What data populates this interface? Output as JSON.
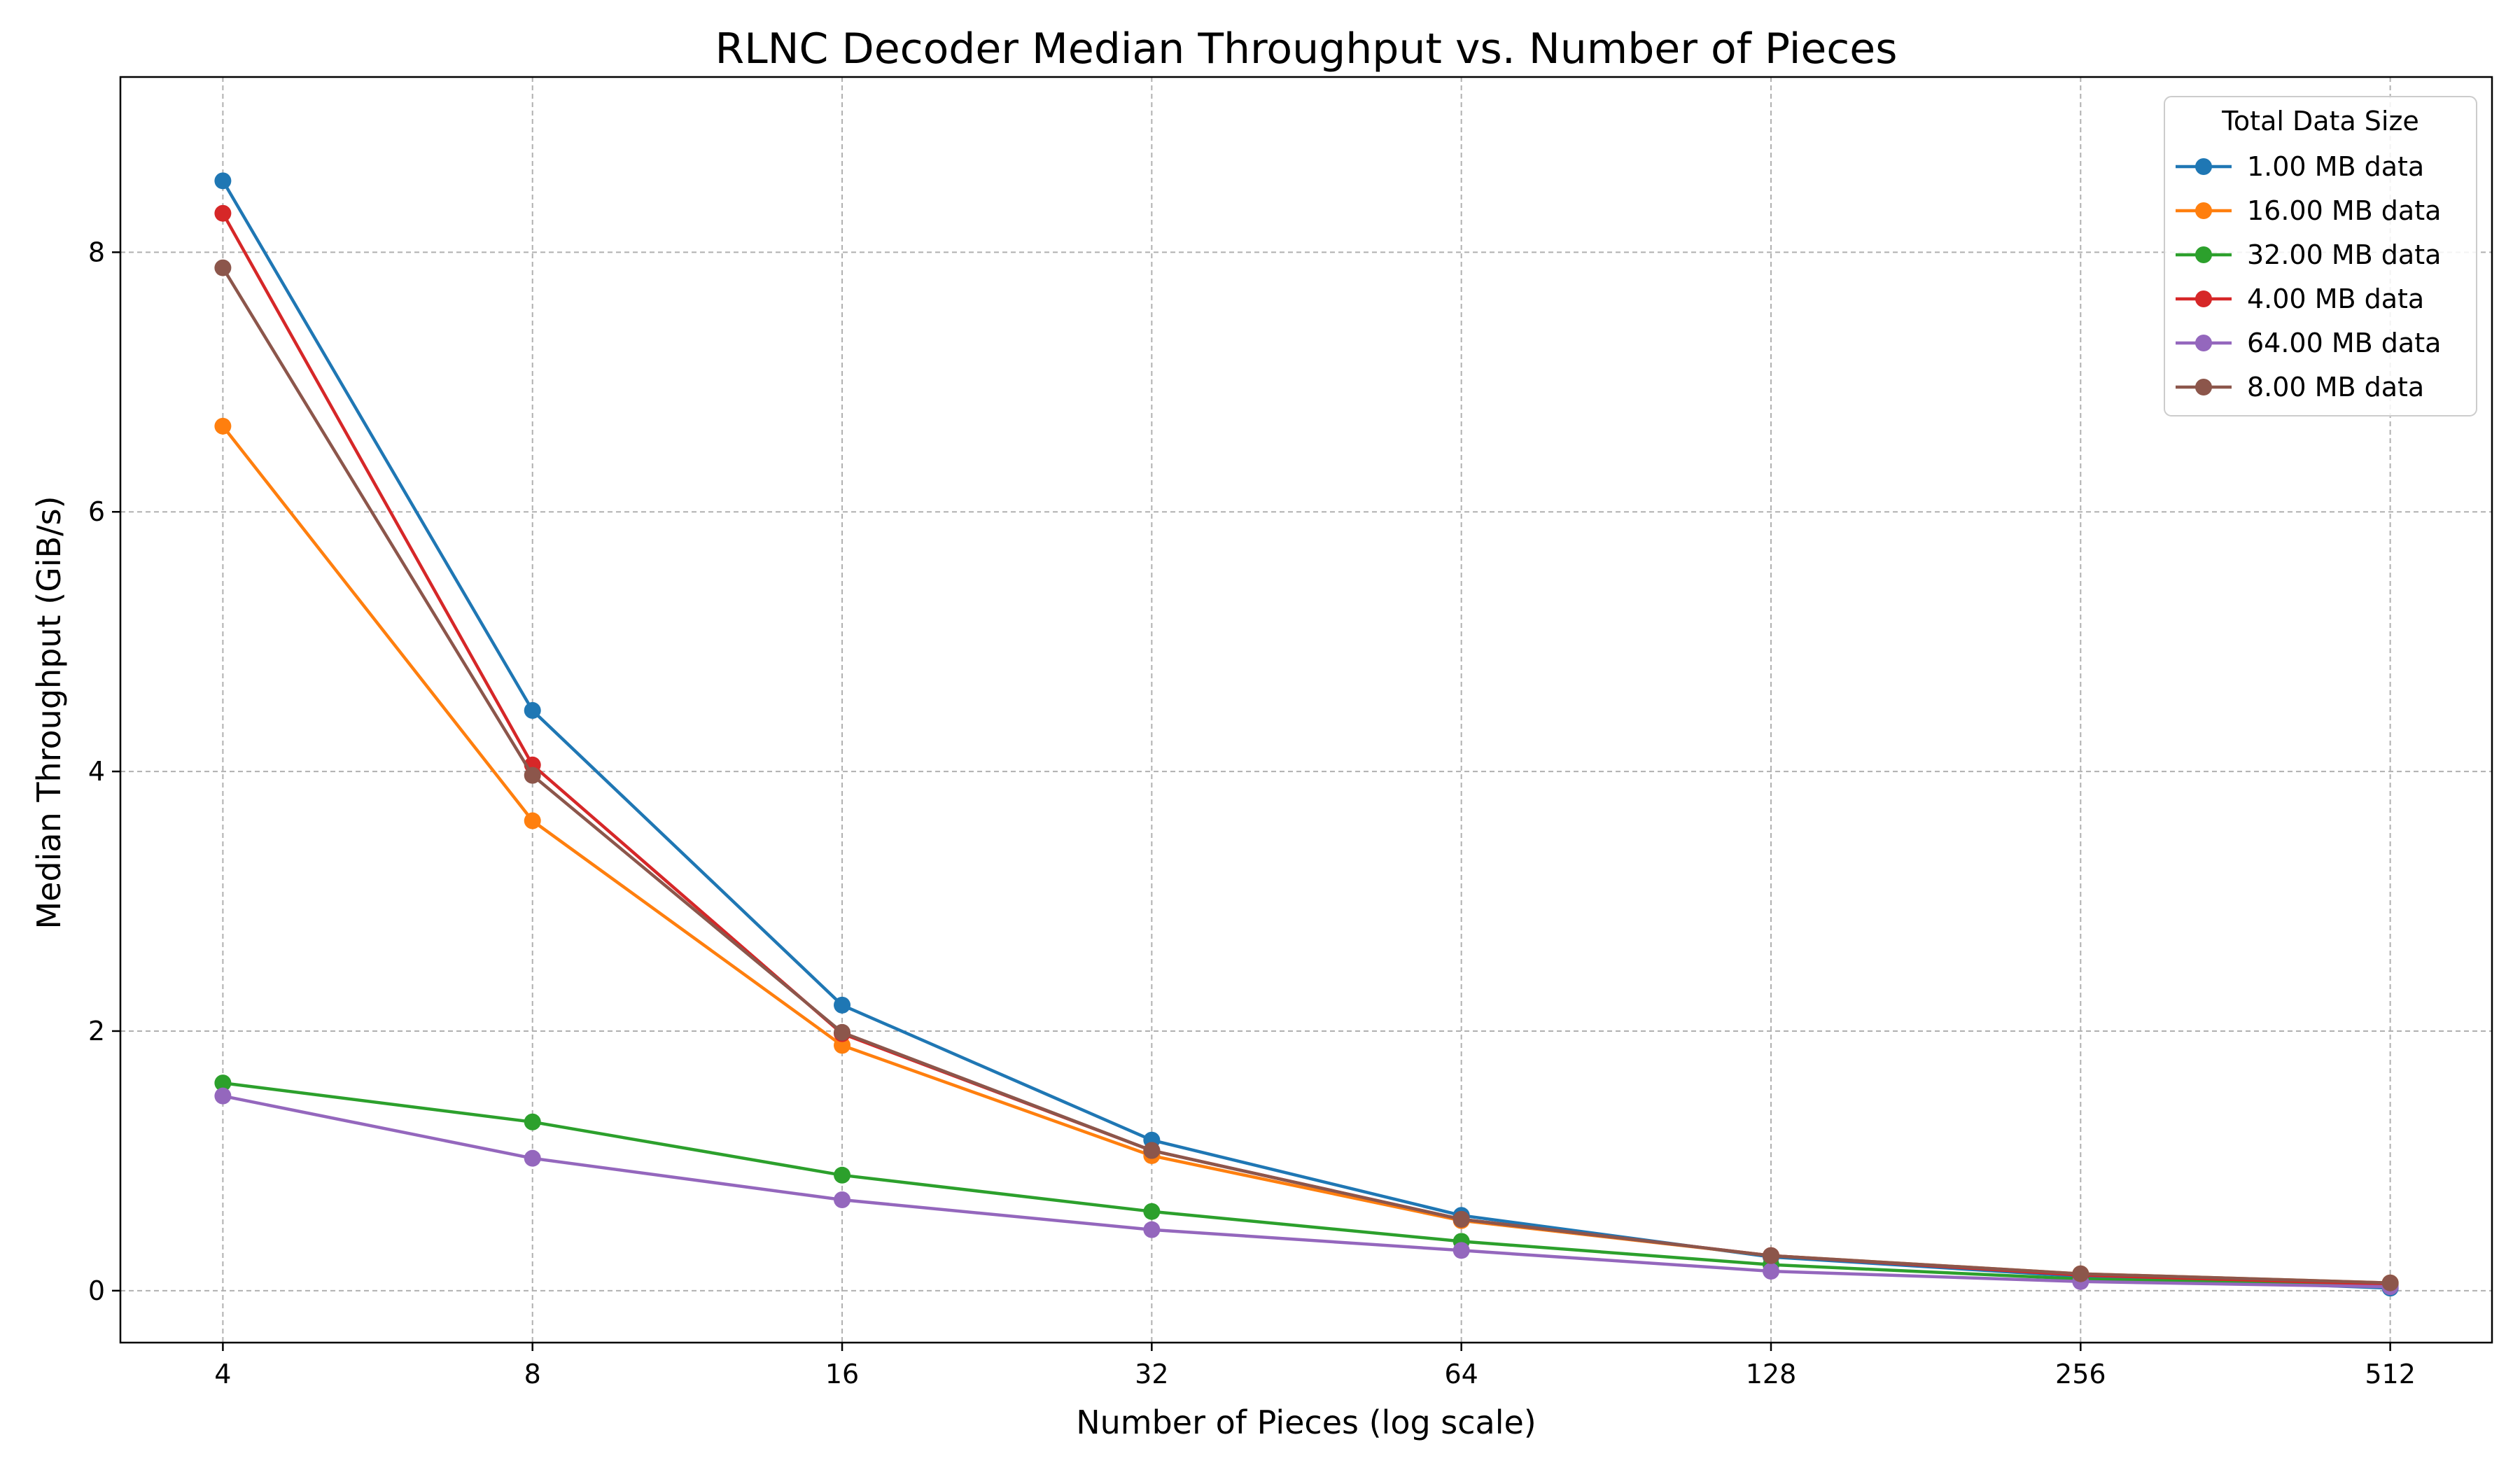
{
  "chart_data": {
    "type": "line",
    "title": "RLNC Decoder Median Throughput vs. Number of Pieces",
    "xlabel": "Number of Pieces (log scale)",
    "ylabel": "Median Throughput (GiB/s)",
    "x_scale": "log2",
    "x": [
      4,
      8,
      16,
      32,
      64,
      128,
      256,
      512
    ],
    "x_tick_labels": [
      "4",
      "8",
      "16",
      "32",
      "64",
      "128",
      "256",
      "512"
    ],
    "y_ticks": [
      0,
      2,
      4,
      6,
      8
    ],
    "xlim": [
      3.18,
      643
    ],
    "ylim": [
      -0.4,
      9.35
    ],
    "grid": true,
    "legend": {
      "title": "Total Data Size",
      "placement": "top-right"
    },
    "series": [
      {
        "name": "1.00 MB data",
        "color": "#1f77b4",
        "values": [
          8.55,
          4.47,
          2.2,
          1.16,
          0.58,
          0.26,
          0.11,
          0.02
        ]
      },
      {
        "name": "16.00 MB data",
        "color": "#ff7f0e",
        "values": [
          6.66,
          3.62,
          1.89,
          1.04,
          0.54,
          0.27,
          0.13,
          0.06
        ]
      },
      {
        "name": "32.00 MB data",
        "color": "#2ca02c",
        "values": [
          1.6,
          1.3,
          0.89,
          0.61,
          0.38,
          0.2,
          0.09,
          0.04
        ]
      },
      {
        "name": "4.00 MB data",
        "color": "#d62728",
        "values": [
          8.3,
          4.05,
          1.98,
          1.08,
          0.55,
          0.27,
          0.12,
          0.05
        ]
      },
      {
        "name": "64.00 MB data",
        "color": "#9467bd",
        "values": [
          1.5,
          1.02,
          0.7,
          0.47,
          0.31,
          0.15,
          0.07,
          0.03
        ]
      },
      {
        "name": "8.00 MB data",
        "color": "#8c564b",
        "values": [
          7.88,
          3.97,
          1.99,
          1.08,
          0.55,
          0.27,
          0.13,
          0.06
        ]
      }
    ]
  }
}
